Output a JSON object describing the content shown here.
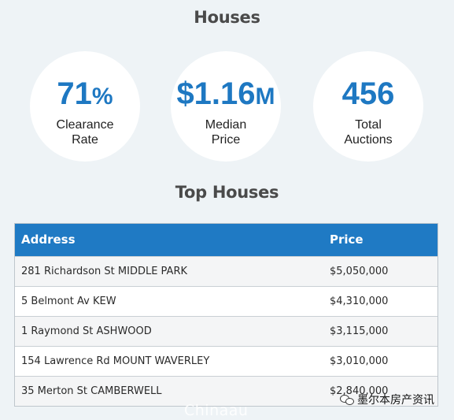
{
  "houses_title": "Houses",
  "stats": {
    "clearance": {
      "value": "71",
      "unit": "%",
      "label_line1": "Clearance",
      "label_line2": "Rate"
    },
    "median": {
      "value": "$1.16",
      "unit": "M",
      "label_line1": "Median",
      "label_line2": "Price"
    },
    "auctions": {
      "value": "456",
      "unit": "",
      "label_line1": "Total",
      "label_line2": "Auctions"
    }
  },
  "top_houses_title": "Top Houses",
  "table": {
    "headers": {
      "address": "Address",
      "price": "Price"
    },
    "rows": [
      {
        "address": "281 Richardson St MIDDLE PARK",
        "price": "$5,050,000"
      },
      {
        "address": "5 Belmont Av KEW",
        "price": "$4,310,000"
      },
      {
        "address": "1 Raymond St ASHWOOD",
        "price": "$3,115,000"
      },
      {
        "address": "154 Lawrence Rd MOUNT WAVERLEY",
        "price": "$3,010,000"
      },
      {
        "address": "35 Merton St CAMBERWELL",
        "price": "$2,840,000"
      }
    ]
  },
  "watermark": "Chinaau",
  "brand": {
    "label": "墨尔本房产资讯",
    "icon": "wechat-icon"
  },
  "colors": {
    "background": "#eef3f6",
    "accent": "#1e78c2",
    "header_bg": "#1f7ac4"
  }
}
